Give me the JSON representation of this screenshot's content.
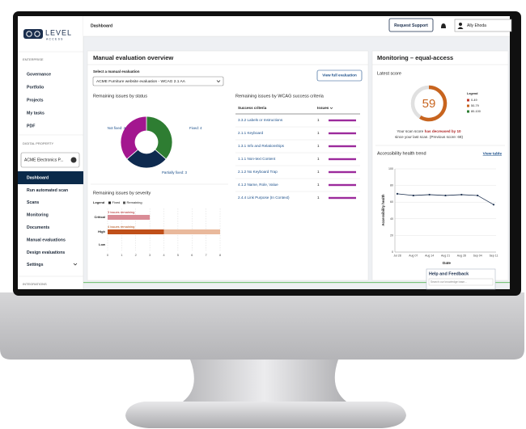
{
  "logo": {
    "word": "LEVEL",
    "sub": "ACCESS"
  },
  "sidebar": {
    "enterprise_heading": "ENTERPRISE",
    "enterprise_items": [
      "Governance",
      "Portfolio",
      "Projects",
      "My tasks",
      "PDF"
    ],
    "property_heading": "DIGITAL PROPERTY",
    "property_select": "ACME Electronics P...",
    "property_items": [
      "Dashboard",
      "Run automated scan",
      "Scans",
      "Monitoring",
      "Documents",
      "Manual evaluations",
      "Design evaluations",
      "Settings"
    ],
    "integrations_heading": "INTEGRATIONS"
  },
  "topbar": {
    "page": "Dashboard",
    "support_button": "Request Support",
    "user": "Ally Ehoda"
  },
  "manual": {
    "title": "Manual evaluation overview",
    "select_label": "Select a manual evaluation",
    "select_value": "ACME Furniture website evaluation - WCAG 2.1 AA",
    "view_button": "View full evaluation"
  },
  "wcag": {
    "title": "Remaining issues by WCAG success criteria",
    "headers": [
      "Success criteria",
      "Issues"
    ],
    "rows": [
      [
        "3.3.2  Labels or Instructions",
        1
      ],
      [
        "2.1.1  Keyboard",
        1
      ],
      [
        "1.3.1  Info and Relationships",
        1
      ],
      [
        "1.1.1  Non-text Content",
        1
      ],
      [
        "2.1.2  No Keyboard Trap",
        1
      ],
      [
        "4.1.2  Name, Role, Value",
        1
      ],
      [
        "2.4.4  Link Purpose (In Context)",
        1
      ]
    ]
  },
  "monitoring": {
    "title": "Monitoring – equal-access",
    "score_message": [
      "Your scan score",
      "has decreased by 10",
      "since your last scan. (Previous score: 69)"
    ],
    "view_table": "View table"
  },
  "help": {
    "title": "Help and Feedback",
    "search_placeholder": "Search our knowledge base..."
  },
  "chart_data": [
    {
      "type": "pie",
      "title": "Remaining issues by status",
      "values": [
        4,
        3,
        4
      ],
      "value_labels": [
        "Fixed: 4",
        "Partially fixed: 3",
        "Not fixed: 4"
      ],
      "colors": [
        "#2e7d32",
        "#0e2a4f",
        "#a3168f"
      ]
    },
    {
      "type": "bar",
      "title": "Remaining issues by severity",
      "legend_title": "Legend",
      "categories": [
        "Critical",
        "High",
        "Low"
      ],
      "series": [
        {
          "name": "Fixed",
          "color": "#c0501a",
          "values": [
            0,
            4,
            0
          ]
        },
        {
          "name": "Remaining",
          "color": "#e9b99c",
          "colors": [
            "#d98c96",
            "#e9b99c",
            "#e9b99c"
          ],
          "values": [
            3,
            4,
            0
          ],
          "value_labels": [
            "3 issues remaining",
            "4 issues remaining",
            null
          ]
        }
      ],
      "xlim": [
        0,
        8
      ],
      "xticks": [
        0,
        1,
        2,
        3,
        4,
        5,
        6,
        7,
        8
      ]
    },
    {
      "type": "gauge",
      "title": "Latest score",
      "value": 59,
      "ylim": [
        0,
        100
      ],
      "color": "#c8641e",
      "legend_title": "Legend",
      "legend": [
        {
          "label": "0-49",
          "color": "#c0392b"
        },
        {
          "label": "50-79",
          "color": "#c8641e"
        },
        {
          "label": "80-100",
          "color": "#2e7d32"
        }
      ]
    },
    {
      "type": "line",
      "title": "Accessibility health trend",
      "categories": [
        "Jul 28",
        "Aug 07",
        "Aug 14",
        "Aug 21",
        "Aug 28",
        "Sep 04",
        "Sep 11"
      ],
      "series": [
        {
          "name": "Accessibility health",
          "color": "#1b2f4e",
          "values": [
            70,
            68,
            69,
            68,
            69,
            68,
            57
          ]
        }
      ],
      "ylim": [
        0,
        100
      ],
      "yticks": [
        0,
        20,
        40,
        60,
        80,
        100
      ],
      "ylabel": "Accessibility health",
      "xlabel": "Date",
      "grid": true
    }
  ]
}
